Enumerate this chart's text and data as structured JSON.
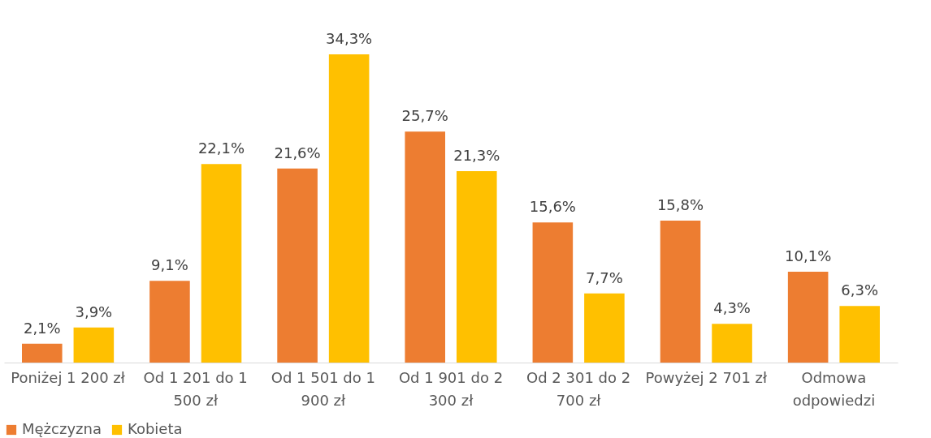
{
  "chart_data": {
    "type": "bar",
    "categories": [
      "Poniżej 1 200 zł",
      "Od 1 201 do 1 500 zł",
      "Od 1 501 do 1 900 zł",
      "Od 1 901 do 2 300 zł",
      "Od 2 301 do 2 700 zł",
      "Powyżej 2 701 zł",
      "Odmowa odpowiedzi"
    ],
    "series": [
      {
        "name": "Mężczyzna",
        "color": "#ed7d31",
        "values": [
          2.1,
          9.1,
          21.6,
          25.7,
          15.6,
          15.8,
          10.1
        ],
        "value_labels": [
          "2,1%",
          "9,1%",
          "21,6%",
          "25,7%",
          "15,6%",
          "15,8%",
          "10,1%"
        ]
      },
      {
        "name": "Kobieta",
        "color": "#ffc000",
        "values": [
          3.9,
          22.1,
          34.3,
          21.3,
          7.7,
          4.3,
          6.3
        ],
        "value_labels": [
          "3,9%",
          "22,1%",
          "34,3%",
          "21,3%",
          "7,7%",
          "4,3%",
          "6,3%"
        ]
      }
    ],
    "legend": "bottom",
    "grid": false
  }
}
